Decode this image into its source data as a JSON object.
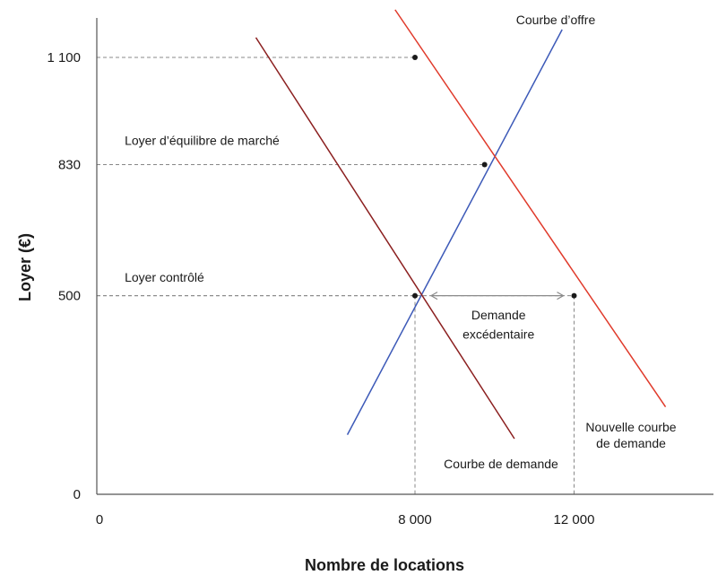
{
  "chart_data": {
    "type": "line",
    "xlabel": "Nombre de locations",
    "ylabel": "Loyer (€)",
    "xlim": [
      0,
      18000
    ],
    "ylim": [
      0,
      1100
    ],
    "x_ticks": [
      {
        "value": 0,
        "label": "0"
      },
      {
        "value": 8000,
        "label": "8 000"
      },
      {
        "value": 12000,
        "label": "12 000"
      }
    ],
    "y_ticks": [
      {
        "value": 0,
        "label": "0"
      },
      {
        "value": 500,
        "label": "500"
      },
      {
        "value": 830,
        "label": "830"
      },
      {
        "value": 1100,
        "label": "1 100"
      }
    ],
    "series": [
      {
        "name": "Courbe d’offre",
        "color": "#3d5ab8",
        "points": [
          [
            6300,
            150
          ],
          [
            11700,
            1170
          ]
        ]
      },
      {
        "name": "Courbe de demande",
        "color": "#8b1f1f",
        "points": [
          [
            4000,
            1150
          ],
          [
            10500,
            140
          ]
        ]
      },
      {
        "name": "Nouvelle courbe de demande",
        "color": "#e03a2b",
        "points": [
          [
            7500,
            1220
          ],
          [
            14300,
            220
          ]
        ]
      }
    ],
    "points": [
      {
        "x": 8000,
        "y": 500
      },
      {
        "x": 9750,
        "y": 830
      },
      {
        "x": 8000,
        "y": 1100
      },
      {
        "x": 12000,
        "y": 500
      }
    ],
    "annotations": [
      {
        "text": "Loyer d’équilibre de marché",
        "x": 700,
        "y": 880
      },
      {
        "text": "Loyer contrôlé",
        "x": 700,
        "y": 535
      },
      {
        "text": "Demande",
        "x": 10100,
        "y": 440
      },
      {
        "text": "excédentaire",
        "x": 10100,
        "y": 392
      }
    ],
    "excess_demand_range": {
      "from": 8000,
      "to": 12000,
      "y": 500
    }
  }
}
